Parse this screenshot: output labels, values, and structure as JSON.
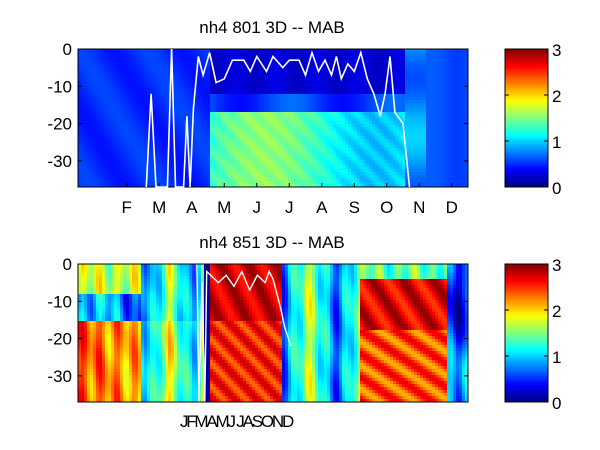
{
  "chart_data": [
    {
      "type": "heatmap",
      "title": "nh4  801 3D   -- MAB",
      "xlabel": "",
      "ylabel": "",
      "x_tick_labels": [
        "F",
        "M",
        "A",
        "M",
        "J",
        "J",
        "A",
        "S",
        "O",
        "N",
        "D"
      ],
      "y_ticks": [
        0,
        -10,
        -20,
        -30
      ],
      "ylim": [
        -37,
        0
      ],
      "xlim_months": [
        0.5,
        12.5
      ],
      "colorbar": {
        "ticks": [
          0,
          1,
          2,
          3
        ],
        "range": [
          0,
          3
        ],
        "colormap": "jet"
      },
      "line_color": "#ffffff",
      "line_points": [
        [
          2.6,
          -37
        ],
        [
          2.75,
          -12
        ],
        [
          2.9,
          -37
        ],
        [
          3.25,
          -37
        ],
        [
          3.38,
          0
        ],
        [
          3.5,
          -37
        ],
        [
          3.75,
          -37
        ],
        [
          3.85,
          -18
        ],
        [
          3.95,
          -37
        ],
        [
          4.05,
          -16
        ],
        [
          4.2,
          -2
        ],
        [
          4.35,
          -7
        ],
        [
          4.55,
          -1
        ],
        [
          4.75,
          -9
        ],
        [
          5.0,
          -8
        ],
        [
          5.25,
          -3
        ],
        [
          5.6,
          -3
        ],
        [
          5.8,
          -6
        ],
        [
          6.0,
          -2
        ],
        [
          6.3,
          -6
        ],
        [
          6.5,
          -2
        ],
        [
          6.8,
          -5
        ],
        [
          7.0,
          -3
        ],
        [
          7.3,
          -3
        ],
        [
          7.5,
          -7
        ],
        [
          7.7,
          -1
        ],
        [
          7.9,
          -6
        ],
        [
          8.1,
          -3
        ],
        [
          8.3,
          -7
        ],
        [
          8.45,
          -2
        ],
        [
          8.6,
          -8
        ],
        [
          8.8,
          -4
        ],
        [
          9.0,
          -6
        ],
        [
          9.2,
          -1
        ],
        [
          9.4,
          -8
        ],
        [
          9.6,
          -12
        ],
        [
          9.8,
          -18
        ],
        [
          9.95,
          -12
        ],
        [
          10.1,
          -2
        ],
        [
          10.25,
          -17
        ],
        [
          10.5,
          -20
        ],
        [
          10.7,
          -37
        ]
      ]
    },
    {
      "type": "heatmap",
      "title": "nh4  851 3D   -- MAB",
      "xlabel": "",
      "ylabel": "",
      "x_tick_label_text": "JFMAMJ JASOND",
      "y_ticks": [
        0,
        -10,
        -20,
        -30
      ],
      "ylim": [
        -37,
        0
      ],
      "colorbar": {
        "ticks": [
          0,
          1,
          2,
          3
        ],
        "range": [
          0,
          3
        ],
        "colormap": "jet"
      },
      "line_color": "#ffffff"
    }
  ]
}
